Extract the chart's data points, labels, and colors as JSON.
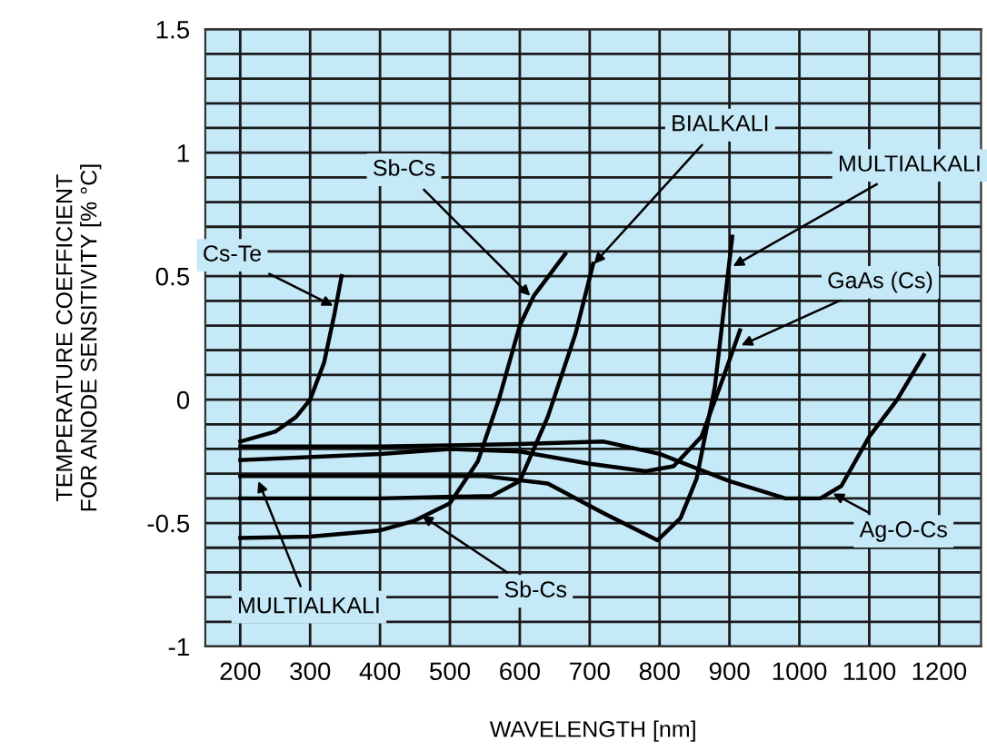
{
  "chart_data": {
    "type": "line",
    "xlabel": "WAVELENGTH [nm]",
    "ylabel": "TEMPERATURE COEFFICIENT\nFOR ANODE SENSITIVITY [% °C]",
    "xlim": [
      150,
      1260
    ],
    "xticks": [
      200,
      300,
      400,
      500,
      600,
      700,
      800,
      900,
      1000,
      1100,
      1200
    ],
    "ylim": [
      -1,
      1.5
    ],
    "yticks": [
      -1,
      {
        "value": -0.9,
        "label": null
      },
      {
        "value": -0.8,
        "label": null
      },
      {
        "value": -0.7,
        "label": null
      },
      {
        "value": -0.6,
        "label": null
      },
      -0.5,
      {
        "value": -0.4,
        "label": null
      },
      {
        "value": -0.3,
        "label": null
      },
      {
        "value": -0.2,
        "label": null
      },
      {
        "value": -0.1,
        "label": null
      },
      0,
      {
        "value": 0.1,
        "label": null
      },
      {
        "value": 0.2,
        "label": null
      },
      {
        "value": 0.3,
        "label": null
      },
      {
        "value": 0.4,
        "label": null
      },
      0.5,
      {
        "value": 0.6,
        "label": null
      },
      {
        "value": 0.7,
        "label": null
      },
      {
        "value": 0.8,
        "label": null
      },
      {
        "value": 0.9,
        "label": null
      },
      1,
      {
        "value": 1.1,
        "label": null
      },
      {
        "value": 1.2,
        "label": null
      },
      {
        "value": 1.3,
        "label": null
      },
      {
        "value": 1.4,
        "label": null
      },
      1.5
    ],
    "grid": true,
    "marker": "none",
    "line_style": "solid",
    "series": [
      {
        "color": "#000000",
        "x": [
          200,
          250,
          280,
          300,
          320,
          335,
          345
        ],
        "values": [
          -0.17,
          -0.13,
          -0.07,
          0.0,
          0.15,
          0.35,
          0.5
        ]
      },
      {
        "color": "#000000",
        "x": [
          200,
          300,
          400,
          450,
          500,
          540,
          570,
          600,
          620,
          665
        ],
        "values": [
          -0.56,
          -0.555,
          -0.53,
          -0.49,
          -0.42,
          -0.25,
          0.0,
          0.3,
          0.42,
          0.59
        ]
      },
      {
        "color": "#000000",
        "x": [
          200,
          400,
          560,
          600,
          640,
          680,
          705
        ],
        "values": [
          -0.4,
          -0.4,
          -0.39,
          -0.33,
          -0.07,
          0.27,
          0.55
        ]
      },
      {
        "color": "#000000",
        "x": [
          200,
          400,
          550,
          640,
          720,
          797,
          830,
          853,
          879,
          904
        ],
        "values": [
          -0.31,
          -0.31,
          -0.31,
          -0.34,
          -0.46,
          -0.57,
          -0.48,
          -0.32,
          0.05,
          0.66
        ]
      },
      {
        "color": "#000000",
        "x": [
          200,
          400,
          500,
          600,
          700,
          780,
          820,
          860,
          890,
          915
        ],
        "values": [
          -0.245,
          -0.22,
          -0.2,
          -0.21,
          -0.26,
          -0.29,
          -0.27,
          -0.15,
          0.08,
          0.28
        ]
      },
      {
        "color": "#000000",
        "x": [
          200,
          400,
          600,
          720,
          800,
          900,
          980,
          1030,
          1060,
          1100,
          1140,
          1178
        ],
        "values": [
          -0.19,
          -0.19,
          -0.18,
          -0.17,
          -0.22,
          -0.33,
          -0.4,
          -0.4,
          -0.35,
          -0.15,
          0.0,
          0.18
        ]
      }
    ],
    "annotations": [
      {
        "text": "Cs-Te",
        "x": 333,
        "y": 0.38
      },
      {
        "text": "Sb-Cs",
        "x": 615,
        "y": 0.42
      },
      {
        "text": "BIALKALI",
        "x": 706,
        "y": 0.55
      },
      {
        "text": "MULTIALKALI",
        "x": 905,
        "y": 0.54
      },
      {
        "text": "GaAs (Cs)",
        "x": 917,
        "y": 0.22
      },
      {
        "text": "Ag-O-Cs",
        "x": 1048,
        "y": -0.38
      },
      {
        "text": "Sb-Cs",
        "x": 460,
        "y": -0.47
      },
      {
        "text": "MULTIALKALI",
        "x": 226,
        "y": -0.33
      }
    ]
  }
}
